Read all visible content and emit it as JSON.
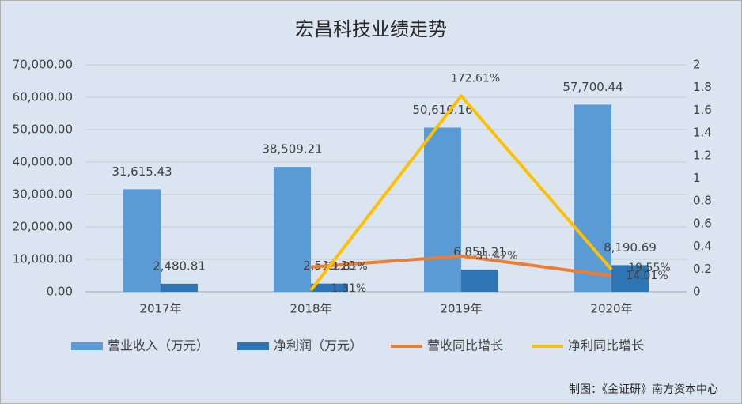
{
  "chart_data": {
    "type": "bar",
    "title": "宏昌科技业绩走势",
    "categories": [
      "2017年",
      "2018年",
      "2019年",
      "2020年"
    ],
    "series": [
      {
        "name": "营业收入（万元）",
        "type": "bar",
        "color": "#5b9bd5",
        "values": [
          31615.43,
          38509.21,
          50610.16,
          57700.44
        ],
        "value_labels": [
          "31,615.43",
          "38,509.21",
          "50,610.16",
          "57,700.44"
        ]
      },
      {
        "name": "净利润（万元）",
        "type": "bar",
        "color": "#2e75b6",
        "values": [
          2480.81,
          2513.23,
          6851.21,
          8190.69
        ],
        "value_labels": [
          "2,480.81",
          "2,513.23",
          "6,851.21",
          "8,190.69"
        ]
      },
      {
        "name": "营收同比增长",
        "type": "line",
        "axis": "y2",
        "color": "#ed7d31",
        "values": [
          null,
          0.2181,
          0.3142,
          0.1401
        ],
        "value_labels": [
          null,
          "21.81%",
          "31.42%",
          "14.01%"
        ]
      },
      {
        "name": "净利同比增长",
        "type": "line",
        "axis": "y2",
        "color": "#ffc000",
        "values": [
          null,
          0.0131,
          1.7261,
          0.1955
        ],
        "value_labels": [
          null,
          "1.31%",
          "172.61%",
          "19.55%"
        ]
      }
    ],
    "ylim": [
      0,
      70000
    ],
    "yticks": [
      {
        "value": 0,
        "label": "0.00"
      },
      {
        "value": 10000,
        "label": "10,000.00"
      },
      {
        "value": 20000,
        "label": "20,000.00"
      },
      {
        "value": 30000,
        "label": "30,000.00"
      },
      {
        "value": 40000,
        "label": "40,000.00"
      },
      {
        "value": 50000,
        "label": "50,000.00"
      },
      {
        "value": 60000,
        "label": "60,000.00"
      },
      {
        "value": 70000,
        "label": "70,000.00"
      }
    ],
    "y2lim": [
      0,
      2
    ],
    "y2ticks": [
      0,
      0.2,
      0.4,
      0.6,
      0.8,
      1,
      1.2,
      1.4,
      1.6,
      1.8,
      2
    ],
    "grid": true,
    "legend": "bottom",
    "source": "制图：《金证研》南方资本中心"
  }
}
